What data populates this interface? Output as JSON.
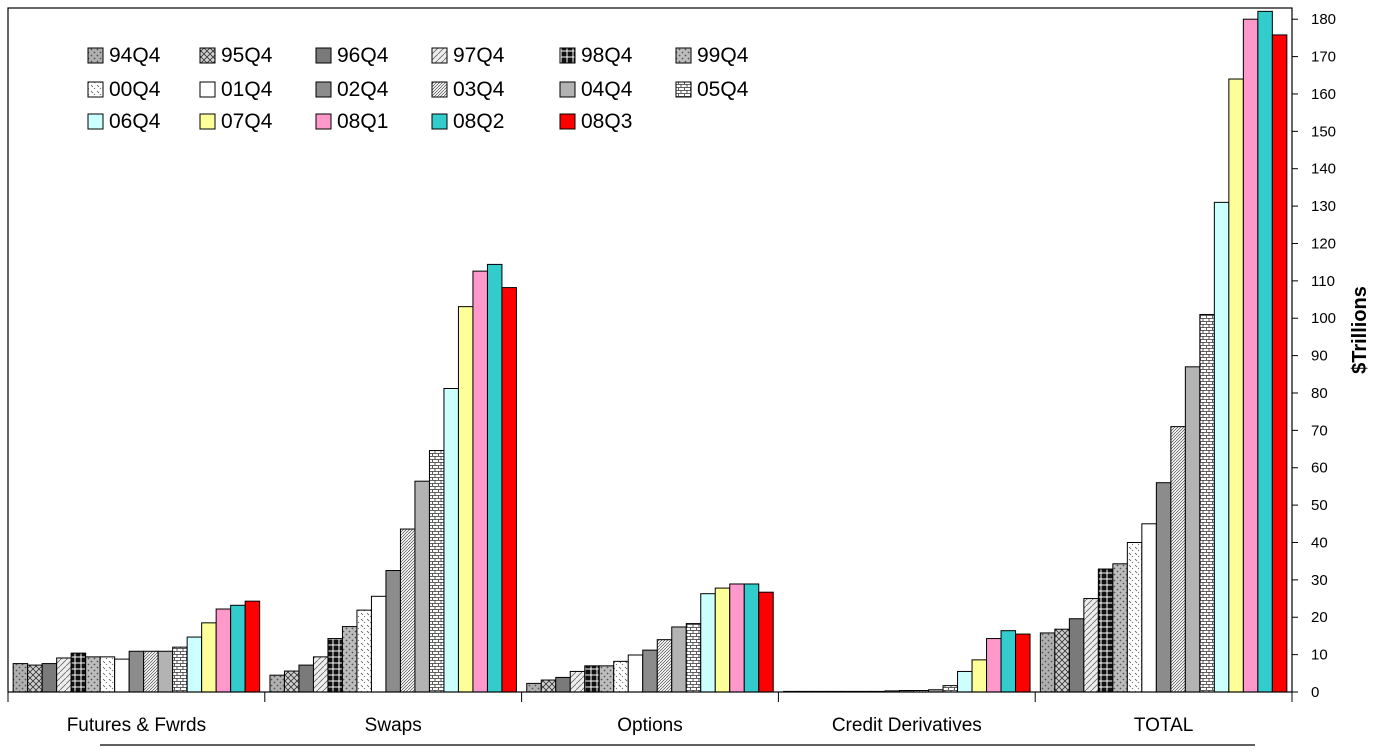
{
  "chart_data": {
    "type": "bar",
    "categories": [
      "Futures & Fwrds",
      "Swaps",
      "Options",
      "Credit Derivatives",
      "TOTAL"
    ],
    "ylabel": "$Trillions",
    "ylim": [
      0,
      180
    ],
    "ytick_step": 10,
    "y_axis_position": "right",
    "grid": false,
    "legend_placement": "top-left",
    "series": [
      {
        "name": "94Q4",
        "color": "#b0b0b0",
        "pattern": "dots-dark",
        "values": [
          7.6,
          4.5,
          2.3,
          0.0,
          15.8
        ]
      },
      {
        "name": "95Q4",
        "color": "#d0d0d0",
        "pattern": "crosshatch",
        "values": [
          7.2,
          5.6,
          3.2,
          0.0,
          16.8
        ]
      },
      {
        "name": "96Q4",
        "color": "#7a7a7a",
        "pattern": "solid",
        "values": [
          7.6,
          7.2,
          3.9,
          0.0,
          19.6
        ]
      },
      {
        "name": "97Q4",
        "color": "#eeeeee",
        "pattern": "diagonal",
        "values": [
          9.1,
          9.4,
          5.5,
          0.0,
          25.0
        ]
      },
      {
        "name": "98Q4",
        "color": "#111111",
        "pattern": "grid-white",
        "values": [
          10.4,
          14.3,
          7.0,
          0.0,
          32.9
        ]
      },
      {
        "name": "99Q4",
        "color": "#bdbdbd",
        "pattern": "dots-dark",
        "values": [
          9.4,
          17.5,
          7.0,
          0.0,
          34.3
        ]
      },
      {
        "name": "00Q4",
        "color": "#ffffff",
        "pattern": "dashes",
        "values": [
          9.4,
          21.9,
          8.2,
          0.0,
          40.0
        ]
      },
      {
        "name": "01Q4",
        "color": "#ffffff",
        "pattern": "solid",
        "values": [
          8.8,
          25.6,
          9.9,
          0.3,
          45.0
        ]
      },
      {
        "name": "02Q4",
        "color": "#8c8c8c",
        "pattern": "solid",
        "values": [
          10.9,
          32.5,
          11.2,
          0.4,
          56.0
        ]
      },
      {
        "name": "03Q4",
        "color": "#ffffff",
        "pattern": "hatch-dense",
        "values": [
          10.9,
          43.6,
          14.0,
          0.4,
          71.0
        ]
      },
      {
        "name": "04Q4",
        "color": "#b3b3b3",
        "pattern": "solid",
        "values": [
          10.9,
          56.4,
          17.4,
          0.6,
          87.0
        ]
      },
      {
        "name": "05Q4",
        "color": "#ffffff",
        "pattern": "brick",
        "values": [
          12.0,
          64.6,
          18.3,
          1.7,
          101.0
        ]
      },
      {
        "name": "06Q4",
        "color": "#ccffff",
        "pattern": "solid",
        "values": [
          14.7,
          81.2,
          26.3,
          5.5,
          131.0
        ]
      },
      {
        "name": "07Q4",
        "color": "#ffff99",
        "pattern": "solid",
        "values": [
          18.5,
          103.1,
          27.8,
          8.6,
          164.0
        ]
      },
      {
        "name": "08Q1",
        "color": "#ff99cc",
        "pattern": "solid",
        "values": [
          22.2,
          112.6,
          28.9,
          14.3,
          180.0
        ]
      },
      {
        "name": "08Q2",
        "color": "#33cccc",
        "pattern": "solid",
        "values": [
          23.2,
          114.4,
          28.9,
          16.4,
          182.1
        ]
      },
      {
        "name": "08Q3",
        "color": "#ff0000",
        "pattern": "solid",
        "values": [
          24.3,
          108.2,
          26.7,
          15.5,
          175.8
        ]
      }
    ]
  }
}
